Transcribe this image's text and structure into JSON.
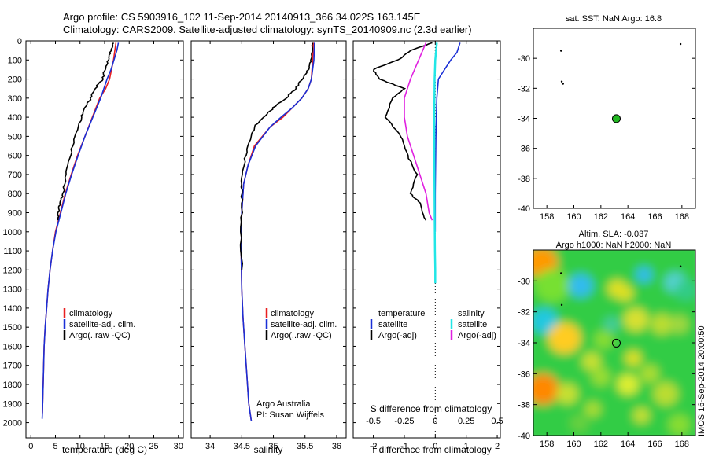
{
  "header": {
    "title_line1": "Argo profile: CS 5903916_102 11-Sep-2014 20140913_366 34.022S 163.145E",
    "title_line2": "Climatology: CARS2009. Satellite-adjusted climatology: synTS_20140909.nc (2.3d earlier)"
  },
  "colors": {
    "climatology": "#e82020",
    "satellite": "#1a2fd6",
    "argo": "#000000",
    "sal_satellite": "#22e6e6",
    "sal_argo": "#e020e0",
    "marker": "#22b822"
  },
  "chart_data": [
    {
      "id": "temperature",
      "type": "line",
      "xlabel": "temperature (deg C)",
      "ylabel": "",
      "xlim": [
        -1,
        31
      ],
      "ylim": [
        2080,
        0
      ],
      "xticks": [
        "0",
        "5",
        "10",
        "15",
        "20",
        "25",
        "30"
      ],
      "yticks": [
        "0",
        "100",
        "200",
        "300",
        "400",
        "500",
        "600",
        "700",
        "800",
        "900",
        "1000",
        "1100",
        "1200",
        "1300",
        "1400",
        "1500",
        "1600",
        "1700",
        "1800",
        "1900",
        "2000"
      ],
      "legend": [
        "climatology",
        "satellite-adj. clim.",
        "Argo(..raw -QC)"
      ],
      "series": [
        {
          "name": "climatology",
          "color": "#e82020",
          "x": [
            17.3,
            16.8,
            16.0,
            15.2,
            14.0,
            12.5,
            11.0,
            9.5,
            8.2,
            7.0,
            6.0,
            5.0,
            4.4,
            3.9,
            3.5,
            3.2,
            2.9,
            2.7,
            2.5,
            2.35
          ],
          "y": [
            10,
            100,
            200,
            250,
            300,
            400,
            500,
            600,
            700,
            800,
            900,
            1000,
            1100,
            1200,
            1300,
            1400,
            1500,
            1600,
            1800,
            1950
          ]
        },
        {
          "name": "satellite-adj. clim.",
          "color": "#1a2fd6",
          "x": [
            17.8,
            17.5,
            16.9,
            16.3,
            15.5,
            14.2,
            12.6,
            11.0,
            9.6,
            8.3,
            7.1,
            6.1,
            5.1,
            4.4,
            3.9,
            3.5,
            3.2,
            2.9,
            2.7,
            2.5,
            2.35,
            2.3
          ],
          "y": [
            10,
            50,
            100,
            150,
            200,
            300,
            400,
            500,
            600,
            700,
            800,
            900,
            1000,
            1100,
            1200,
            1300,
            1400,
            1500,
            1600,
            1800,
            1950,
            1980
          ]
        },
        {
          "name": "Argo(..raw -QC)",
          "color": "#000000",
          "x": [
            16.8,
            16.2,
            15.7,
            15.0,
            14.6,
            13.0,
            12.2,
            11.0,
            10.3,
            9.0,
            8.0,
            7.2,
            6.5,
            6.0,
            5.6,
            5.5
          ],
          "y": [
            10,
            60,
            100,
            150,
            200,
            250,
            300,
            350,
            400,
            500,
            600,
            700,
            800,
            850,
            900,
            940
          ]
        }
      ]
    },
    {
      "id": "salinity",
      "type": "line",
      "xlabel": "salinity",
      "xlim": [
        33.7,
        36.15
      ],
      "ylim": [
        2080,
        0
      ],
      "xticks": [
        "34",
        "34.5",
        "35",
        "35.5",
        "36"
      ],
      "legend": [
        "climatology",
        "satellite-adj. clim.",
        "Argo(..raw -QC)"
      ],
      "annotation": [
        "Argo Australia",
        "PI: Susan Wijffels"
      ],
      "series": [
        {
          "name": "climatology",
          "color": "#e82020",
          "x": [
            35.63,
            35.62,
            35.6,
            35.55,
            35.45,
            35.3,
            35.15,
            34.95,
            34.7,
            34.6,
            34.53,
            34.5,
            34.49,
            34.5,
            34.52,
            34.55,
            34.58,
            34.61,
            34.65
          ],
          "y": [
            10,
            100,
            200,
            250,
            300,
            350,
            400,
            450,
            550,
            650,
            750,
            900,
            1100,
            1300,
            1450,
            1600,
            1750,
            1900,
            1990
          ]
        },
        {
          "name": "satellite-adj. clim.",
          "color": "#1a2fd6",
          "x": [
            35.65,
            35.64,
            35.6,
            35.55,
            35.45,
            35.3,
            35.12,
            34.95,
            34.72,
            34.6,
            34.53,
            34.5,
            34.49,
            34.5,
            34.52,
            34.55,
            34.58,
            34.61,
            34.65
          ],
          "y": [
            10,
            100,
            200,
            250,
            300,
            350,
            400,
            450,
            550,
            650,
            750,
            900,
            1100,
            1300,
            1450,
            1600,
            1750,
            1900,
            1990
          ]
        },
        {
          "name": "Argo(..raw -QC)",
          "color": "#000000",
          "x": [
            35.62,
            35.6,
            35.55,
            35.45,
            35.35,
            35.2,
            35.0,
            34.85,
            34.7,
            34.6,
            34.53,
            34.5,
            34.5,
            34.49,
            34.5
          ],
          "y": [
            10,
            100,
            150,
            200,
            250,
            300,
            350,
            400,
            450,
            550,
            650,
            750,
            850,
            1000,
            1200
          ]
        }
      ]
    },
    {
      "id": "difference",
      "type": "line",
      "xlabel": "T difference from climatology",
      "xlabel_top": "S difference from climatology",
      "xlim": [
        -2.65,
        2.1
      ],
      "ylim": [
        2080,
        0
      ],
      "xticks": [
        "-2",
        "-1",
        "0",
        "1",
        "2"
      ],
      "xticks_s": [
        "-0.5",
        "-0.25",
        "0",
        "0.25",
        "0.5"
      ],
      "legend_t": [
        "temperature",
        "satellite",
        "Argo(-adj)"
      ],
      "legend_s": [
        "salinity",
        "satellite",
        "Argo(-adj)"
      ],
      "series": [
        {
          "name": "satellite",
          "color": "#1a2fd6",
          "x": [
            0.8,
            0.7,
            0.5,
            0.3,
            0.1,
            0.05,
            0.02,
            0,
            0
          ],
          "y": [
            10,
            60,
            100,
            150,
            200,
            300,
            500,
            800,
            1000
          ]
        },
        {
          "name": "Argo(-adj)",
          "color": "#000000",
          "x": [
            -0.1,
            -0.8,
            -1.2,
            -2.0,
            -1.8,
            -1.0,
            -1.4,
            -1.6,
            -1.1,
            -0.9,
            -0.6,
            -0.8,
            -0.5,
            -0.3
          ],
          "y": [
            10,
            50,
            100,
            150,
            200,
            250,
            300,
            400,
            500,
            600,
            700,
            800,
            850,
            940
          ]
        },
        {
          "name": "satellite",
          "color": "#22e6e6",
          "x": [
            0.05,
            0.0,
            -0.02,
            -0.03,
            -0.03,
            -0.02,
            -0.01,
            0,
            0
          ],
          "y": [
            10,
            100,
            200,
            400,
            600,
            900,
            1100,
            1200,
            1270
          ]
        },
        {
          "name": "Argo(-adj)",
          "color": "#e020e0",
          "x": [
            -0.3,
            -0.8,
            -1.0,
            -1.0,
            -0.9,
            -0.6,
            -0.3,
            -0.2,
            -0.1
          ],
          "y": [
            10,
            200,
            300,
            400,
            500,
            650,
            800,
            900,
            940
          ]
        }
      ]
    },
    {
      "id": "sst_map",
      "type": "scatter",
      "title": "sat. SST: NaN Argo: 16.8",
      "xlim": [
        157,
        169
      ],
      "ylim": [
        -40,
        -28
      ],
      "xticks": [
        "158",
        "160",
        "162",
        "164",
        "166",
        "168"
      ],
      "yticks": [
        "-30",
        "-32",
        "-34",
        "-36",
        "-38",
        "-40"
      ],
      "float_position": [
        163.145,
        -34.022
      ]
    },
    {
      "id": "sla_map",
      "type": "heatmap",
      "title_line1": "Altim. SLA: -0.037",
      "title_line2": "Argo h1000: NaN h2000: NaN",
      "xlim": [
        157,
        169
      ],
      "ylim": [
        -40,
        -28
      ],
      "xticks": [
        "158",
        "160",
        "162",
        "164",
        "166",
        "168"
      ],
      "yticks": [
        "-30",
        "-32",
        "-34",
        "-36",
        "-38",
        "-40"
      ],
      "float_position": [
        163.145,
        -34.022
      ]
    }
  ],
  "side_label": "IMOS 16-Sep-2014 20:00:50"
}
